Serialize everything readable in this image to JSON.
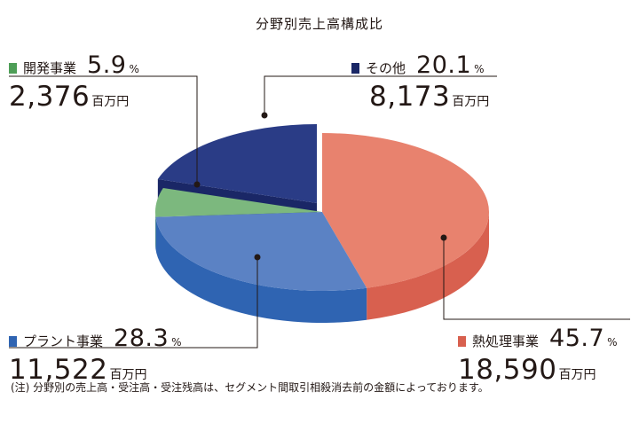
{
  "chart_data": {
    "type": "pie",
    "title": "分野別売上高構成比",
    "unit": "百万円",
    "slices": [
      {
        "name": "熱処理事業",
        "percent": "45.7",
        "percent_symbol": "%",
        "amount": "18,590",
        "unit": "百万円",
        "top_color": "#e8826e",
        "side_color": "#d8604f"
      },
      {
        "name": "プラント事業",
        "percent": "28.3",
        "percent_symbol": "%",
        "amount": "11,522",
        "unit": "百万円",
        "top_color": "#5b82c4",
        "side_color": "#2f64b2"
      },
      {
        "name": "開発事業",
        "percent": "5.9",
        "percent_symbol": "%",
        "amount": "2,376",
        "unit": "百万円",
        "top_color": "#7cb87e",
        "side_color": "#4e9e57"
      },
      {
        "name": "その他",
        "percent": "20.1",
        "percent_symbol": "%",
        "amount": "8,173",
        "unit": "百万円",
        "top_color": "#2a3c86",
        "side_color": "#1a2766"
      }
    ]
  },
  "footnote": "(注) 分野別の売上高・受注高・受注残高は、セグメント間取引相殺消去前の金額によっております。"
}
